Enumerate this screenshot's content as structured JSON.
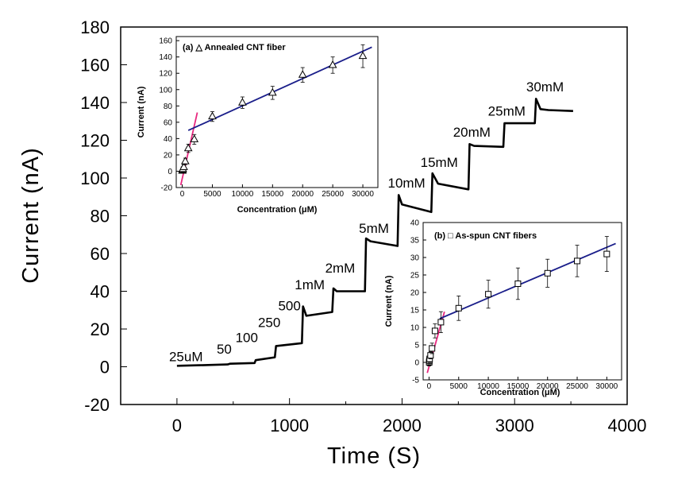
{
  "chart_data": [
    {
      "type": "line",
      "xlabel": "Time (S)",
      "ylabel": "Current (nA)",
      "xlim": [
        -500,
        4000
      ],
      "ylim": [
        -20,
        180
      ],
      "xticks": [
        0,
        1000,
        2000,
        3000,
        4000
      ],
      "yticks": [
        -20,
        0,
        20,
        40,
        60,
        80,
        100,
        120,
        140,
        160,
        180
      ],
      "series": [
        {
          "points": [
            [
              0,
              0.5
            ],
            [
              200,
              0.8
            ],
            [
              450,
              1.2
            ],
            [
              470,
              1.6
            ],
            [
              690,
              2.0
            ],
            [
              700,
              3.5
            ],
            [
              870,
              5.0
            ],
            [
              880,
              11.0
            ],
            [
              1110,
              12.5
            ],
            [
              1120,
              32.0
            ],
            [
              1150,
              27.0
            ],
            [
              1380,
              29.0
            ],
            [
              1390,
              41.5
            ],
            [
              1420,
              40.0
            ],
            [
              1670,
              40.0
            ],
            [
              1680,
              68.0
            ],
            [
              1720,
              66.5
            ],
            [
              1960,
              64.0
            ],
            [
              1970,
              91.0
            ],
            [
              2000,
              86.0
            ],
            [
              2260,
              82.0
            ],
            [
              2270,
              102.5
            ],
            [
              2320,
              97.0
            ],
            [
              2590,
              94.0
            ],
            [
              2600,
              118.0
            ],
            [
              2640,
              117.0
            ],
            [
              2900,
              116.5
            ],
            [
              2910,
              129.0
            ],
            [
              3180,
              129.0
            ],
            [
              3190,
              142.0
            ],
            [
              3230,
              136.5
            ],
            [
              3300,
              136.0
            ],
            [
              3520,
              135.5
            ]
          ]
        }
      ],
      "annotations": [
        {
          "text": "25uM",
          "x": 80,
          "y": 3
        },
        {
          "text": "50",
          "x": 420,
          "y": 7
        },
        {
          "text": "100",
          "x": 620,
          "y": 13
        },
        {
          "text": "250",
          "x": 820,
          "y": 21
        },
        {
          "text": "500",
          "x": 1000,
          "y": 30
        },
        {
          "text": "1mM",
          "x": 1180,
          "y": 41
        },
        {
          "text": "2mM",
          "x": 1450,
          "y": 50
        },
        {
          "text": "5mM",
          "x": 1750,
          "y": 71
        },
        {
          "text": "10mM",
          "x": 2040,
          "y": 95
        },
        {
          "text": "15mM",
          "x": 2330,
          "y": 106
        },
        {
          "text": "20mM",
          "x": 2620,
          "y": 122
        },
        {
          "text": "25mM",
          "x": 2930,
          "y": 133
        },
        {
          "text": "30mM",
          "x": 3270,
          "y": 146
        }
      ]
    },
    {
      "type": "scatter",
      "legend": "(a) △ Annealed CNT fiber",
      "xlabel": "Concentration (μM)",
      "ylabel": "Current (nA)",
      "xlim": [
        -1000,
        32500
      ],
      "ylim": [
        -20,
        165
      ],
      "xticks": [
        0,
        5000,
        10000,
        15000,
        20000,
        25000,
        30000
      ],
      "yticks": [
        -20,
        0,
        20,
        40,
        60,
        80,
        100,
        120,
        140,
        160
      ],
      "marker": "triangle",
      "points": [
        {
          "x": 25,
          "y": 0.5,
          "err": 3
        },
        {
          "x": 50,
          "y": 1.5,
          "err": 3
        },
        {
          "x": 100,
          "y": 2.5,
          "err": 3
        },
        {
          "x": 250,
          "y": 5,
          "err": 3
        },
        {
          "x": 500,
          "y": 12,
          "err": 4
        },
        {
          "x": 1000,
          "y": 28,
          "err": 5
        },
        {
          "x": 2000,
          "y": 39,
          "err": 6
        },
        {
          "x": 5000,
          "y": 67,
          "err": 6
        },
        {
          "x": 10000,
          "y": 84,
          "err": 7
        },
        {
          "x": 15000,
          "y": 96,
          "err": 8
        },
        {
          "x": 20000,
          "y": 118,
          "err": 9
        },
        {
          "x": 25000,
          "y": 130,
          "err": 10
        },
        {
          "x": 30000,
          "y": 141,
          "err": 14
        }
      ],
      "fits": [
        {
          "color": "#e8287f",
          "from": [
            -250,
            -17
          ],
          "to": [
            2500,
            72
          ]
        },
        {
          "color": "#1a1e8a",
          "from": [
            1000,
            50
          ],
          "to": [
            31500,
            152
          ]
        }
      ]
    },
    {
      "type": "scatter",
      "legend": "(b) □ As-spun CNT fibers",
      "xlabel": "Concentration (μM)",
      "ylabel": "Current (nA)",
      "xlim": [
        -1000,
        32500
      ],
      "ylim": [
        -5,
        40
      ],
      "xticks": [
        0,
        5000,
        10000,
        15000,
        20000,
        25000,
        30000
      ],
      "yticks": [
        -5,
        0,
        5,
        10,
        15,
        20,
        25,
        30,
        35,
        40
      ],
      "marker": "square",
      "points": [
        {
          "x": 25,
          "y": 0,
          "err": 1
        },
        {
          "x": 50,
          "y": 0.5,
          "err": 1
        },
        {
          "x": 100,
          "y": 1,
          "err": 1
        },
        {
          "x": 250,
          "y": 2,
          "err": 1
        },
        {
          "x": 500,
          "y": 4,
          "err": 1.5
        },
        {
          "x": 1000,
          "y": 9,
          "err": 2
        },
        {
          "x": 2000,
          "y": 11.5,
          "err": 3
        },
        {
          "x": 5000,
          "y": 15.5,
          "err": 3.5
        },
        {
          "x": 10000,
          "y": 19.5,
          "err": 4
        },
        {
          "x": 15000,
          "y": 22.5,
          "err": 4.5
        },
        {
          "x": 20000,
          "y": 25.5,
          "err": 4
        },
        {
          "x": 25000,
          "y": 29,
          "err": 4.5
        },
        {
          "x": 30000,
          "y": 31,
          "err": 5
        }
      ],
      "fits": [
        {
          "color": "#e8287f",
          "from": [
            -300,
            -3
          ],
          "to": [
            2600,
            14.5
          ]
        },
        {
          "color": "#1a1e8a",
          "from": [
            1800,
            12.5
          ],
          "to": [
            31500,
            34
          ]
        }
      ]
    }
  ]
}
